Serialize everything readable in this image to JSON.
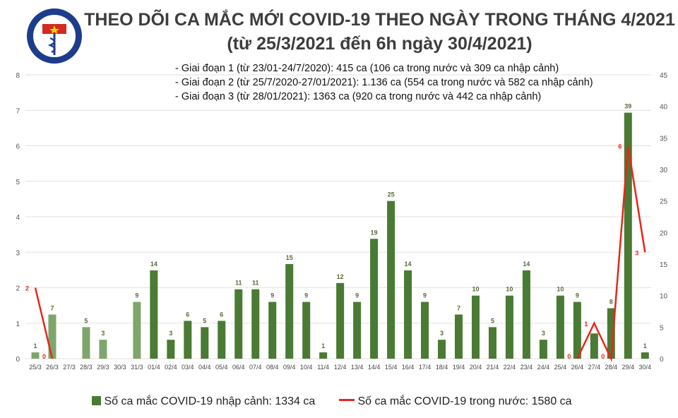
{
  "title": "THEO DÕI CA MẮC MỚI COVID-19 THEO NGÀY TRONG THÁNG 4/2021",
  "subtitle": "(từ 25/3/2021 đến 6h ngày 30/4/2021)",
  "logo_text": "BỘ Y TẾ · MINISTRY OF HEALTH",
  "notes": [
    "- Giai đoạn 1 (từ 23/01-24/7/2020): 415 ca (106 ca trong nước và 309 ca nhập cảnh)",
    "- Giai đoạn 2 (từ 25/7/2020-27/01/2021): 1.136 ca (554 ca trong nước và 582 ca nhập cảnh)",
    "- Giai đoạn 3 (từ 28/01/2021): 1363 ca (920 ca trong nước và 442 ca nhập cảnh)"
  ],
  "chart_data": {
    "type": "bar+line",
    "categories": [
      "25/3",
      "26/3",
      "27/3",
      "28/3",
      "29/3",
      "30/3",
      "31/3",
      "01/4",
      "02/4",
      "03/4",
      "04/4",
      "05/4",
      "06/4",
      "07/4",
      "08/4",
      "09/4",
      "10/4",
      "11/4",
      "12/4",
      "13/4",
      "14/4",
      "15/4",
      "16/4",
      "17/4",
      "18/4",
      "19/4",
      "20/4",
      "21/4",
      "22/4",
      "23/4",
      "24/4",
      "25/4",
      "26/4",
      "27/4",
      "28/4",
      "29/4",
      "30/4"
    ],
    "series": [
      {
        "name": "Số ca mắc COVID-19 nhập cảnh: 1334 ca",
        "type": "bar",
        "axis": "right",
        "color": "#4a7a34",
        "light_color": "#7ea66c",
        "values": [
          1,
          7,
          0,
          5,
          3,
          0,
          9,
          14,
          3,
          6,
          5,
          6,
          11,
          11,
          9,
          15,
          9,
          1,
          12,
          9,
          19,
          25,
          14,
          9,
          3,
          7,
          10,
          5,
          10,
          14,
          3,
          10,
          9,
          4,
          8,
          39,
          1
        ],
        "labels": [
          "1",
          "7",
          "",
          "5",
          "3",
          "",
          "9",
          "14",
          "3",
          "6",
          "5",
          "6",
          "11",
          "11",
          "9",
          "15",
          "9",
          "1",
          "12",
          "9",
          "19",
          "25",
          "14",
          "9",
          "3",
          "7",
          "10",
          "5",
          "10",
          "14",
          "3",
          "10",
          "9",
          "",
          "8",
          "39",
          "1"
        ]
      },
      {
        "name": "Số ca mắc COVID-19 trong nước: 1580 ca",
        "type": "line",
        "axis": "left",
        "color": "#e8261c",
        "values": [
          2,
          0,
          null,
          null,
          null,
          null,
          null,
          null,
          null,
          null,
          null,
          null,
          null,
          null,
          null,
          null,
          null,
          null,
          null,
          null,
          null,
          null,
          null,
          null,
          null,
          null,
          null,
          null,
          null,
          null,
          null,
          null,
          0,
          1,
          0,
          6,
          3
        ]
      }
    ],
    "left_axis": {
      "ylim": [
        0,
        8
      ],
      "ticks": [
        0,
        1,
        2,
        3,
        4,
        5,
        6,
        7,
        8
      ]
    },
    "right_axis": {
      "ylim": [
        0,
        45
      ],
      "ticks": [
        0,
        5,
        10,
        15,
        20,
        25,
        30,
        35,
        40,
        45
      ]
    },
    "grid": true,
    "legend_position": "bottom"
  }
}
